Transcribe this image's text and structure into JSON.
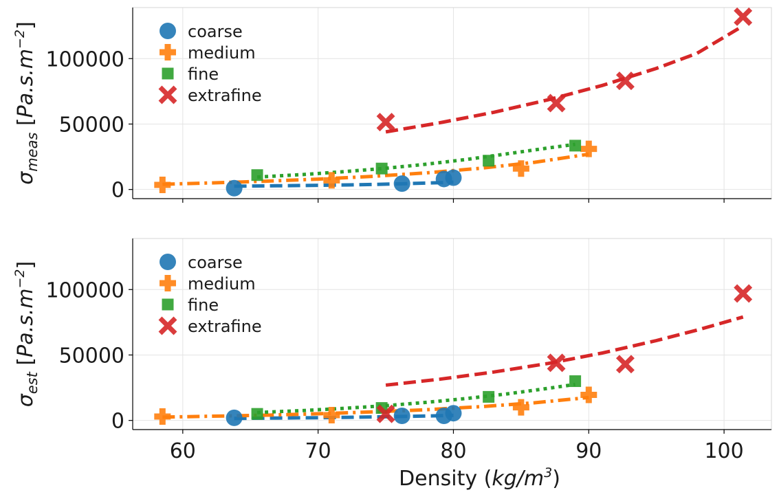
{
  "chart_data": [
    {
      "type": "scatter",
      "panel": "top",
      "title": "",
      "ylabel": {
        "prefix": "σ",
        "sub": "meas",
        "unit_open": " [",
        "unit_main": "Pa.s.m",
        "unit_sup": "−2",
        "unit_close": "]"
      },
      "xlabel": "",
      "xlim": [
        56.3,
        103.5
      ],
      "ylim": [
        -7000,
        139000
      ],
      "xticks": [
        60,
        70,
        80,
        90,
        100
      ],
      "yticks": [
        0,
        50000,
        100000
      ],
      "ytick_labels": [
        "0",
        "50000",
        "100000"
      ],
      "grid": true,
      "legend_placement": "upper-left",
      "series": [
        {
          "name": "coarse",
          "marker": "circle",
          "line": "dashed",
          "color": "#1f77b4",
          "points": [
            [
              63.8,
              1000
            ],
            [
              76.2,
              4500
            ],
            [
              79.3,
              8000
            ],
            [
              80.0,
              9000
            ]
          ],
          "fit": [
            [
              63.8,
              2500
            ],
            [
              67,
              2800
            ],
            [
              70,
              3200
            ],
            [
              73,
              3600
            ],
            [
              76,
              4300
            ],
            [
              79,
              5200
            ],
            [
              80,
              5600
            ]
          ]
        },
        {
          "name": "medium",
          "marker": "plus",
          "line": "dashdot",
          "color": "#ff7f0e",
          "points": [
            [
              58.5,
              3500
            ],
            [
              71.0,
              7000
            ],
            [
              85.0,
              16000
            ],
            [
              90.0,
              31000
            ]
          ],
          "fit": [
            [
              58.5,
              4000
            ],
            [
              62,
              5000
            ],
            [
              66,
              6300
            ],
            [
              70,
              7900
            ],
            [
              74,
              10000
            ],
            [
              78,
              12700
            ],
            [
              82,
              16200
            ],
            [
              86,
              20800
            ],
            [
              90,
              27000
            ]
          ]
        },
        {
          "name": "fine",
          "marker": "square",
          "line": "dotted",
          "color": "#2ca02c",
          "points": [
            [
              65.5,
              11000
            ],
            [
              74.7,
              16000
            ],
            [
              82.6,
              22000
            ],
            [
              89.0,
              33500
            ]
          ],
          "fit": [
            [
              65.5,
              9500
            ],
            [
              69,
              11500
            ],
            [
              72,
              13700
            ],
            [
              75,
              16200
            ],
            [
              78,
              19300
            ],
            [
              81,
              23000
            ],
            [
              84,
              27300
            ],
            [
              87,
              31700
            ],
            [
              89,
              34500
            ]
          ]
        },
        {
          "name": "extrafine",
          "marker": "x",
          "line": "dashed",
          "color": "#d62728",
          "points": [
            [
              75.0,
              51500
            ],
            [
              87.6,
              66000
            ],
            [
              92.7,
              83000
            ],
            [
              101.4,
              132000
            ]
          ],
          "fit": [
            [
              75,
              44000
            ],
            [
              79,
              51000
            ],
            [
              83,
              59000
            ],
            [
              87,
              68500
            ],
            [
              91,
              79500
            ],
            [
              95,
              92500
            ],
            [
              98,
              104000
            ],
            [
              101.4,
              125000
            ]
          ]
        }
      ]
    },
    {
      "type": "scatter",
      "panel": "bottom",
      "title": "",
      "ylabel": {
        "prefix": "σ",
        "sub": "est",
        "unit_open": "  [",
        "unit_main": "Pa.s.m",
        "unit_sup": "−2",
        "unit_close": "]"
      },
      "xlabel": {
        "prefix": "Density (",
        "unit_main": "kg/m",
        "unit_sup": "3",
        "suffix": ")"
      },
      "xlim": [
        56.3,
        103.5
      ],
      "ylim": [
        -7000,
        139000
      ],
      "xticks": [
        60,
        70,
        80,
        90,
        100
      ],
      "xtick_labels": [
        "60",
        "70",
        "80",
        "90",
        "100"
      ],
      "yticks": [
        0,
        50000,
        100000
      ],
      "ytick_labels": [
        "0",
        "50000",
        "100000"
      ],
      "grid": true,
      "legend_placement": "upper-left",
      "series": [
        {
          "name": "coarse",
          "marker": "circle",
          "line": "dashed",
          "color": "#1f77b4",
          "points": [
            [
              63.8,
              2000
            ],
            [
              76.2,
              3500
            ],
            [
              79.3,
              3500
            ],
            [
              80.0,
              5500
            ]
          ],
          "fit": [
            [
              63.8,
              1500
            ],
            [
              67,
              1800
            ],
            [
              70,
              2100
            ],
            [
              73,
              2500
            ],
            [
              76,
              3000
            ],
            [
              79,
              3600
            ],
            [
              80,
              3900
            ]
          ]
        },
        {
          "name": "medium",
          "marker": "plus",
          "line": "dashdot",
          "color": "#ff7f0e",
          "points": [
            [
              58.5,
              3000
            ],
            [
              71.0,
              4000
            ],
            [
              85.0,
              10000
            ],
            [
              90.0,
              19500
            ]
          ],
          "fit": [
            [
              58.5,
              2500
            ],
            [
              62,
              3200
            ],
            [
              66,
              4000
            ],
            [
              70,
              5100
            ],
            [
              74,
              6500
            ],
            [
              78,
              8200
            ],
            [
              82,
              10500
            ],
            [
              86,
              13500
            ],
            [
              90,
              17500
            ]
          ]
        },
        {
          "name": "fine",
          "marker": "square",
          "line": "dotted",
          "color": "#2ca02c",
          "points": [
            [
              65.5,
              5000
            ],
            [
              74.7,
              9500
            ],
            [
              82.6,
              18000
            ],
            [
              89.0,
              30000
            ]
          ],
          "fit": [
            [
              65.5,
              6000
            ],
            [
              69,
              7600
            ],
            [
              72,
              9300
            ],
            [
              75,
              11300
            ],
            [
              78,
              13800
            ],
            [
              81,
              16800
            ],
            [
              84,
              20300
            ],
            [
              87,
              24500
            ],
            [
              89,
              27500
            ]
          ]
        },
        {
          "name": "extrafine",
          "marker": "x",
          "line": "dashed",
          "color": "#d62728",
          "points": [
            [
              75.0,
              5000
            ],
            [
              87.6,
              44000
            ],
            [
              92.7,
              43000
            ],
            [
              101.4,
              97000
            ]
          ],
          "fit": [
            [
              75,
              27000
            ],
            [
              79,
              31500
            ],
            [
              83,
              37000
            ],
            [
              87,
              43500
            ],
            [
              91,
              51500
            ],
            [
              95,
              61000
            ],
            [
              98,
              69000
            ],
            [
              101.4,
              79000
            ]
          ]
        }
      ]
    }
  ]
}
